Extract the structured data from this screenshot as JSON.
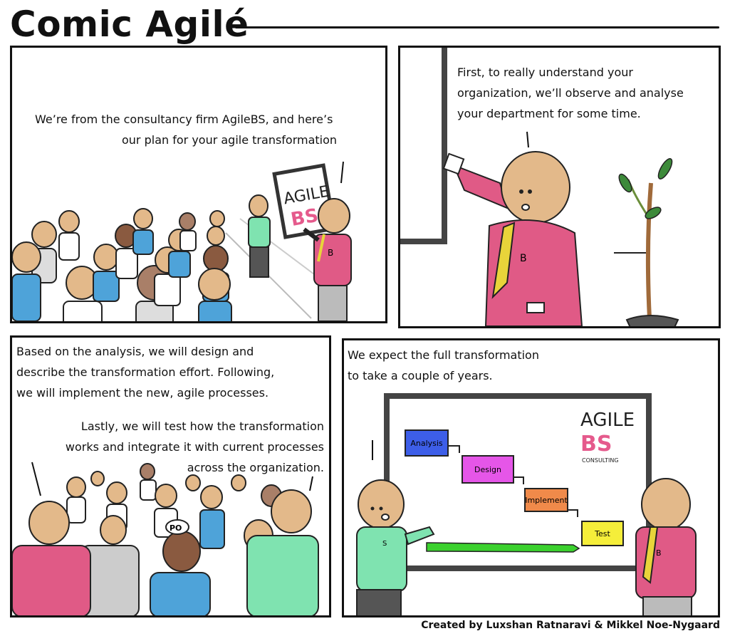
{
  "title": "Comic Agilé",
  "panel1": {
    "caption_line1": "We’re from the consultancy firm AgileBS, and here’s",
    "caption_line2": "our plan for your agile transformation",
    "sign_line1": "AGILE",
    "sign_bs": "BS",
    "shirt_letter": "B"
  },
  "panel2": {
    "caption_line1": "First, to really understand your",
    "caption_line2": "organization, we’ll observe and analyse",
    "caption_line3": "your department for some time.",
    "shirt_letter": "B"
  },
  "panel3": {
    "caption_line1": "Based on the analysis, we will design and",
    "caption_line2": "describe the transformation effort. Following,",
    "caption_line3": "we will implement the new, agile processes.",
    "caption_line4": "Lastly, we will test how the transformation",
    "caption_line5": "works and integrate it with current processes",
    "caption_line6": "across the organization.",
    "hat_label": "PO"
  },
  "panel4": {
    "caption_line1": "We expect the full transformation",
    "caption_line2": "to take a couple of years.",
    "board_logo_agile": "AGILE",
    "board_logo_bs": "BS",
    "board_logo_sub": "CONSULTING",
    "steps": [
      "Analysis",
      "Design",
      "Implement",
      "Test"
    ],
    "step_colors": [
      "#3d5ee8",
      "#e556e8",
      "#f08a4a",
      "#f5ee3a"
    ],
    "left_shirt_letter": "S",
    "right_shirt_letter": "B"
  },
  "credit": "Created by Luxshan Ratnaravi & Mikkel Noe-Nygaard"
}
